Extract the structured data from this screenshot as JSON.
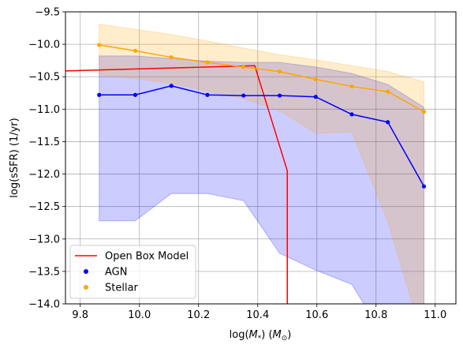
{
  "chart_data": {
    "type": "line",
    "title": "",
    "xlabel_main": "log(",
    "xlabel_m": "M",
    "xlabel_star": "*",
    "xlabel_rest": ") (",
    "xlabel_m2": "M",
    "xlabel_sun": "⊙",
    "xlabel_end": ")",
    "ylabel": "log(sSFR) (1/yr)",
    "xlim": [
      9.75,
      11.07
    ],
    "ylim": [
      -14.0,
      -9.5
    ],
    "xticks": [
      "9.8",
      "10.0",
      "10.2",
      "10.4",
      "10.6",
      "10.8",
      "11.0"
    ],
    "xtick_values": [
      9.8,
      10.0,
      10.2,
      10.4,
      10.6,
      10.8,
      11.0
    ],
    "yticks": [
      "−9.5",
      "−10.0",
      "−10.5",
      "−11.0",
      "−11.5",
      "−12.0",
      "−12.5",
      "−13.0",
      "−13.5",
      "−14.0"
    ],
    "ytick_values": [
      -9.5,
      -10.0,
      -10.5,
      -11.0,
      -11.5,
      -12.0,
      -12.5,
      -13.0,
      -13.5,
      -14.0
    ],
    "grid": true,
    "legend_position": "lower-left",
    "series": [
      {
        "name": "Open Box Model",
        "kind": "line",
        "color": "#ff0000",
        "x": [
          9.75,
          10.39,
          10.5,
          10.5
        ],
        "y": [
          -10.41,
          -10.33,
          -11.95,
          -14.0
        ]
      },
      {
        "name": "AGN",
        "kind": "scatter-line",
        "color": "#0000ff",
        "band_color": "#0000ff",
        "x": [
          9.864,
          9.986,
          10.108,
          10.23,
          10.352,
          10.474,
          10.596,
          10.718,
          10.84,
          10.962
        ],
        "y": [
          -10.78,
          -10.78,
          -10.64,
          -10.78,
          -10.79,
          -10.79,
          -10.81,
          -11.08,
          -11.2,
          -12.19
        ],
        "band_upper": [
          -10.18,
          -10.18,
          -10.22,
          -10.26,
          -10.28,
          -10.28,
          -10.35,
          -10.45,
          -10.62,
          -10.97
        ],
        "band_lower": [
          -12.72,
          -12.72,
          -12.3,
          -12.3,
          -12.41,
          -13.22,
          -13.48,
          -13.7,
          -14.6,
          -14.6
        ]
      },
      {
        "name": "Stellar",
        "kind": "scatter-line",
        "color": "#ffa500",
        "band_color": "#ffa500",
        "x": [
          9.864,
          9.986,
          10.108,
          10.23,
          10.352,
          10.474,
          10.596,
          10.718,
          10.84,
          10.962
        ],
        "y": [
          -10.01,
          -10.1,
          -10.2,
          -10.28,
          -10.35,
          -10.42,
          -10.54,
          -10.65,
          -10.73,
          -11.04
        ],
        "band_upper": [
          -9.69,
          -9.77,
          -9.85,
          -9.95,
          -10.06,
          -10.16,
          -10.24,
          -10.33,
          -10.42,
          -10.58
        ],
        "band_lower": [
          -10.47,
          -10.53,
          -10.6,
          -10.72,
          -10.84,
          -11.02,
          -11.37,
          -11.35,
          -12.73,
          -14.6
        ]
      }
    ],
    "legend": [
      {
        "label": "Open Box Model",
        "marker": "line",
        "color": "#ff0000"
      },
      {
        "label": "AGN",
        "marker": "dot",
        "color": "#0000ff"
      },
      {
        "label": "Stellar",
        "marker": "dot",
        "color": "#ffa500"
      }
    ]
  }
}
